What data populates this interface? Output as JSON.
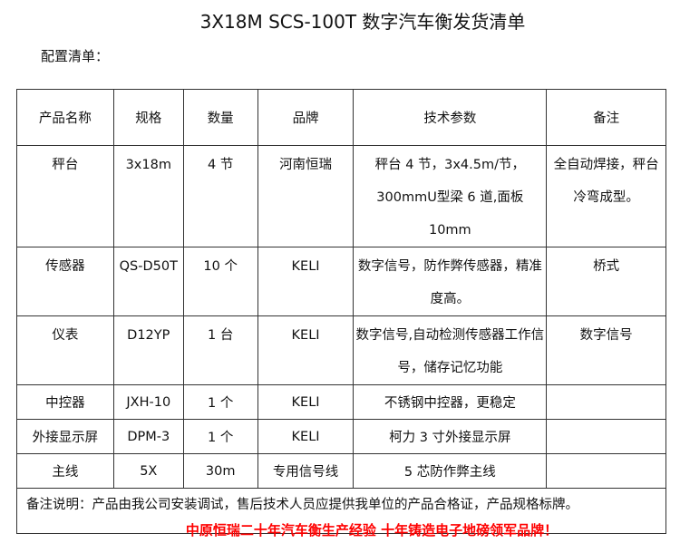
{
  "title": "3X18M SCS-100T 数字汽车衡发货清单",
  "subtitle": "配置清单：",
  "table": {
    "headers": [
      "产品名称",
      "规格",
      "数量",
      "品牌",
      "技术参数",
      "备注"
    ],
    "rows": [
      [
        "秤台",
        "3x18m",
        "4 节",
        "河南恒瑞",
        "秤台 4 节，3x4.5m/节，300mmU型梁 6 道,面板 10mm",
        "全自动焊接，秤台冷弯成型。"
      ],
      [
        "传感器",
        "QS-D50T",
        "10 个",
        "KELI",
        "数字信号，防作弊传感器，精准度高。",
        "桥式"
      ],
      [
        "仪表",
        "D12YP",
        "1 台",
        "KELI",
        "数字信号,自动检测传感器工作信号，储存记忆功能",
        "数字信号"
      ],
      [
        "中控器",
        "JXH-10",
        "1 个",
        "KELI",
        "不锈钢中控器，更稳定",
        ""
      ],
      [
        "外接显示屏",
        "DPM-3",
        "1 个",
        "KELI",
        "柯力 3 寸外接显示屏",
        ""
      ],
      [
        "主线",
        "5X",
        "30m",
        "专用信号线",
        "5 芯防作弊主线",
        ""
      ]
    ],
    "note": "备注说明：产品由我公司安装调试，售后技术人员应提供我单位的产品合格证，产品规格标牌。"
  },
  "slogan": "中原恒瑞二十年汽车衡生产经验 十年铸造电子地磅领军品牌！",
  "colors": {
    "slogan": "#ff0000",
    "border": "#333333"
  }
}
